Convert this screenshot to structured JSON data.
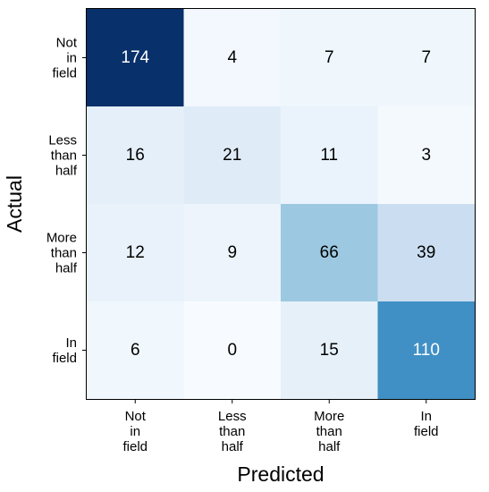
{
  "chart_data": {
    "type": "heatmap",
    "xlabel": "Predicted",
    "ylabel": "Actual",
    "x_categories": [
      "Not in field",
      "Less than half",
      "More than half",
      "In field"
    ],
    "y_categories": [
      "Not in field",
      "Less than half",
      "More than half",
      "In field"
    ],
    "x_tick_lines": [
      [
        "Not",
        "in",
        "field"
      ],
      [
        "Less",
        "than",
        "half"
      ],
      [
        "More",
        "than",
        "half"
      ],
      [
        "In",
        "field"
      ]
    ],
    "y_tick_lines": [
      [
        "Not",
        "in",
        "field"
      ],
      [
        "Less",
        "than",
        "half"
      ],
      [
        "More",
        "than",
        "half"
      ],
      [
        "In",
        "field"
      ]
    ],
    "values": [
      [
        174,
        4,
        7,
        7
      ],
      [
        16,
        21,
        11,
        3
      ],
      [
        12,
        9,
        66,
        39
      ],
      [
        6,
        0,
        15,
        110
      ]
    ],
    "colormap": "Blues",
    "value_range": [
      0,
      174
    ],
    "grid": false,
    "legend": "none"
  }
}
